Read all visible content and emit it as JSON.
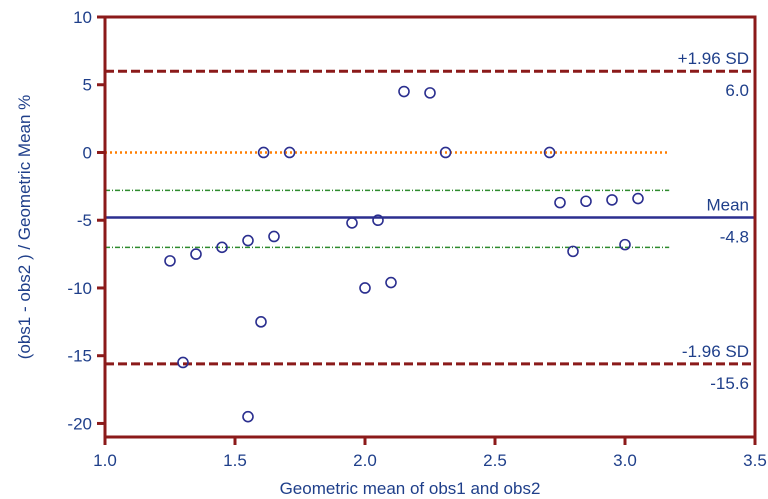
{
  "chart_data": {
    "type": "scatter",
    "title": "",
    "xlabel": "Geometric mean of obs1 and obs2",
    "ylabel": "(obs1 - obs2 ) / Geometric Mean %",
    "xlim": [
      1.0,
      3.5
    ],
    "ylim": [
      -21,
      10
    ],
    "x_ticks": [
      1.0,
      1.5,
      2.0,
      2.5,
      3.0,
      3.5
    ],
    "x_tick_labels": [
      "1.0",
      "1.5",
      "2.0",
      "2.5",
      "3.0",
      "3.5"
    ],
    "y_ticks": [
      10,
      5,
      0,
      -5,
      -10,
      -15,
      -20
    ],
    "y_tick_labels": [
      "10",
      "5",
      "0",
      "-5",
      "-10",
      "-15",
      "-20"
    ],
    "grid": false,
    "points": [
      {
        "x": 1.25,
        "y": -8.0
      },
      {
        "x": 1.3,
        "y": -15.5
      },
      {
        "x": 1.35,
        "y": -7.5
      },
      {
        "x": 1.45,
        "y": -7.0
      },
      {
        "x": 1.55,
        "y": -6.5
      },
      {
        "x": 1.55,
        "y": -19.5
      },
      {
        "x": 1.6,
        "y": -12.5
      },
      {
        "x": 1.61,
        "y": 0.0
      },
      {
        "x": 1.65,
        "y": -6.2
      },
      {
        "x": 1.71,
        "y": 0.0
      },
      {
        "x": 1.95,
        "y": -5.2
      },
      {
        "x": 2.0,
        "y": -10.0
      },
      {
        "x": 2.05,
        "y": -5.0
      },
      {
        "x": 2.1,
        "y": -9.6
      },
      {
        "x": 2.15,
        "y": 4.5
      },
      {
        "x": 2.25,
        "y": 4.4
      },
      {
        "x": 2.31,
        "y": 0.0
      },
      {
        "x": 2.71,
        "y": 0.0
      },
      {
        "x": 2.75,
        "y": -3.7
      },
      {
        "x": 2.8,
        "y": -7.3
      },
      {
        "x": 2.85,
        "y": -3.6
      },
      {
        "x": 2.95,
        "y": -3.5
      },
      {
        "x": 3.0,
        "y": -6.8
      },
      {
        "x": 3.05,
        "y": -3.4
      }
    ],
    "reference_lines": [
      {
        "name": "upper-loa",
        "y": 6.0,
        "color": "#8b1a1a",
        "style": "dashed",
        "label": "+1.96 SD",
        "value_label": "6.0"
      },
      {
        "name": "mean",
        "y": -4.8,
        "color": "#2b2f8f",
        "style": "solid",
        "label": "Mean",
        "value_label": "-4.8"
      },
      {
        "name": "lower-loa",
        "y": -15.6,
        "color": "#8b1a1a",
        "style": "dashed",
        "label": "-1.96 SD",
        "value_label": "-15.6"
      }
    ],
    "zero_line": {
      "y": 0,
      "x_end": 3.17,
      "color": "#ff7f00"
    },
    "mean_ci_lines": [
      {
        "y": -2.8,
        "x_end": 3.17,
        "color": "#2e8b2e"
      },
      {
        "y": -7.0,
        "x_end": 3.17,
        "color": "#2e8b2e"
      }
    ],
    "colors": {
      "axis": "#8b1a1a",
      "points": "#2b2f8f",
      "text": "#1f3f8a"
    }
  }
}
